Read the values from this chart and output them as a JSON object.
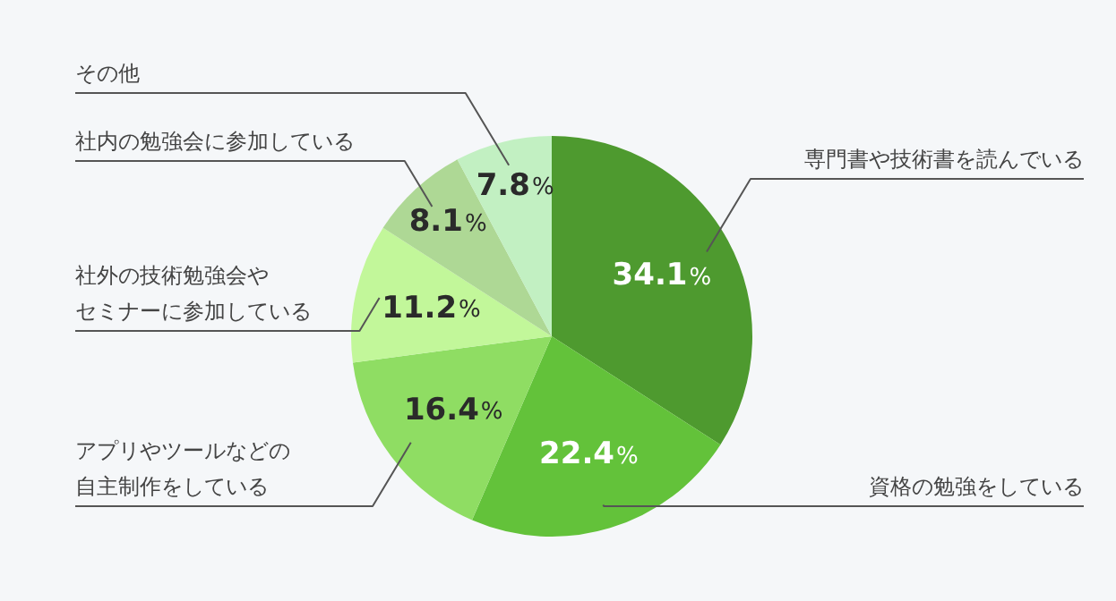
{
  "chart_data": {
    "type": "pie",
    "categories": [
      "専門書や技術書を読んでいる",
      "資格の勉強をしている",
      "アプリやツールなどの自主制作をしている",
      "社外の技術勉強会やセミナーに参加している",
      "社内の勉強会に参加している",
      "その他"
    ],
    "values": [
      34.1,
      22.4,
      16.4,
      11.2,
      8.1,
      7.8
    ],
    "value_labels": [
      "34.1%",
      "22.4%",
      "16.4%",
      "11.2%",
      "8.1%",
      "7.8%"
    ],
    "colors": [
      "#4e9a2f",
      "#63c23a",
      "#8fdd63",
      "#c2f79a",
      "#aed895",
      "#c2f0c2"
    ]
  }
}
